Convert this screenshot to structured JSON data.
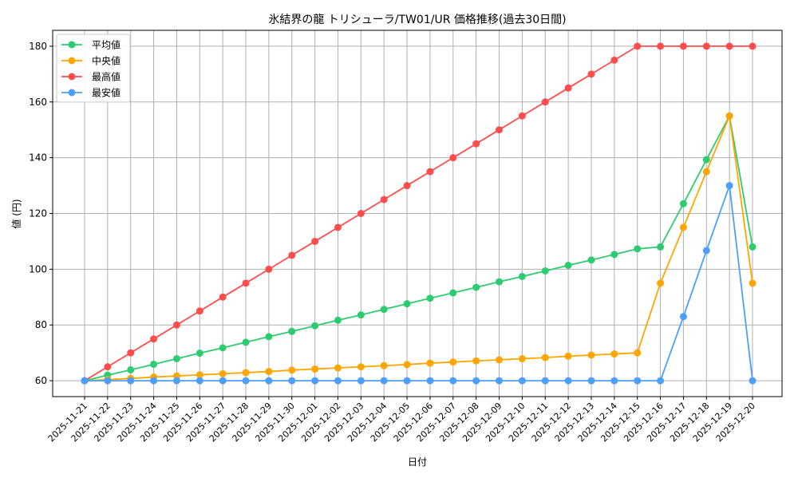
{
  "chart_data": {
    "type": "line",
    "title": "氷結界の龍 トリシューラ/TW01/UR 価格推移(過去30日間)",
    "xlabel": "日付",
    "ylabel": "値 (円)",
    "ylim": [
      54.3,
      185.7
    ],
    "yticks": [
      60,
      80,
      100,
      120,
      140,
      160,
      180
    ],
    "grid": true,
    "legend_position": "top-left",
    "x": [
      "2025-11-21",
      "2025-11-22",
      "2025-11-23",
      "2025-11-24",
      "2025-11-25",
      "2025-11-26",
      "2025-11-27",
      "2025-11-28",
      "2025-11-29",
      "2025-11-30",
      "2025-12-01",
      "2025-12-02",
      "2025-12-03",
      "2025-12-04",
      "2025-12-05",
      "2025-12-06",
      "2025-12-07",
      "2025-12-08",
      "2025-12-09",
      "2025-12-10",
      "2025-12-11",
      "2025-12-12",
      "2025-12-13",
      "2025-12-14",
      "2025-12-15",
      "2025-12-16",
      "2025-12-17",
      "2025-12-18",
      "2025-12-19",
      "2025-12-20"
    ],
    "series": [
      {
        "name": "平均値",
        "color": "#2ecc71",
        "values": [
          60,
          62,
          63.9,
          65.9,
          67.9,
          69.9,
          71.8,
          73.8,
          75.8,
          77.7,
          79.7,
          81.7,
          83.6,
          85.6,
          87.6,
          89.6,
          91.5,
          93.5,
          95.5,
          97.4,
          99.4,
          101.4,
          103.3,
          105.3,
          107.3,
          108,
          123.5,
          139.3,
          155,
          108
        ]
      },
      {
        "name": "中央値",
        "color": "#ffa500",
        "values": [
          60,
          60.4,
          60.8,
          61.3,
          61.7,
          62.1,
          62.5,
          62.9,
          63.3,
          63.8,
          64.2,
          64.6,
          65,
          65.4,
          65.8,
          66.3,
          66.7,
          67.1,
          67.5,
          67.9,
          68.3,
          68.8,
          69.2,
          69.6,
          70,
          95,
          115,
          135,
          155,
          95
        ]
      },
      {
        "name": "最高値",
        "color": "#ff4d4d",
        "values": [
          60,
          65,
          70,
          75,
          80,
          85,
          90,
          95,
          100,
          105,
          110,
          115,
          120,
          125,
          130,
          135,
          140,
          145,
          150,
          155,
          160,
          165,
          170,
          175,
          180,
          180,
          180,
          180,
          180,
          180
        ]
      },
      {
        "name": "最安値",
        "color": "#4d9fff",
        "values": [
          60,
          60,
          60,
          60,
          60,
          60,
          60,
          60,
          60,
          60,
          60,
          60,
          60,
          60,
          60,
          60,
          60,
          60,
          60,
          60,
          60,
          60,
          60,
          60,
          60,
          60,
          83,
          106.7,
          130,
          60
        ]
      }
    ]
  }
}
